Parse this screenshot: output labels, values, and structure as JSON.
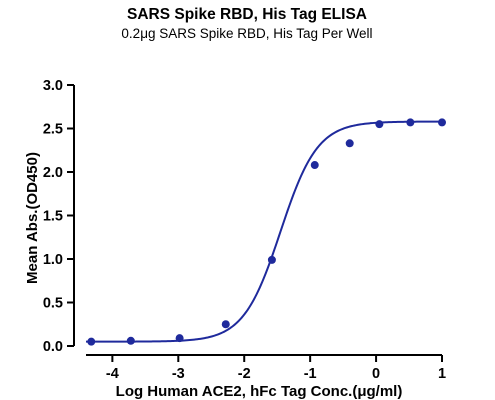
{
  "chart_data": {
    "type": "scatter",
    "title": "SARS Spike RBD, His Tag ELISA",
    "subtitle": "0.2μg SARS Spike RBD, His Tag Per Well",
    "xlabel": "Log Human ACE2, hFc Tag Conc.(μg/ml)",
    "ylabel": "Mean Abs.(OD450)",
    "xlim": [
      -4.4,
      1.0
    ],
    "ylim": [
      0.0,
      3.0
    ],
    "xticks": [
      -4,
      -3,
      -2,
      -1,
      0,
      1
    ],
    "xtick_labels": [
      "-4",
      "-3",
      "-2",
      "-1",
      "0",
      "1"
    ],
    "yticks": [
      0.0,
      0.5,
      1.0,
      1.5,
      2.0,
      2.5,
      3.0
    ],
    "ytick_labels": [
      "0.0",
      "0.5",
      "1.0",
      "1.5",
      "2.0",
      "2.5",
      "3.0"
    ],
    "grid": false,
    "legend": "none",
    "color": "#1f2a9c",
    "series": [
      {
        "x": [
          -4.32,
          -3.72,
          -2.98,
          -2.28,
          -1.58,
          -0.93,
          -0.4,
          0.05,
          0.52,
          1.0
        ],
        "y": [
          0.05,
          0.06,
          0.09,
          0.25,
          0.99,
          2.08,
          2.33,
          2.55,
          2.57,
          2.57
        ]
      }
    ],
    "fit": {
      "model": "4PL",
      "bottom": 0.05,
      "top": 2.58,
      "logEC50": -1.45,
      "hill": 1.55
    }
  }
}
